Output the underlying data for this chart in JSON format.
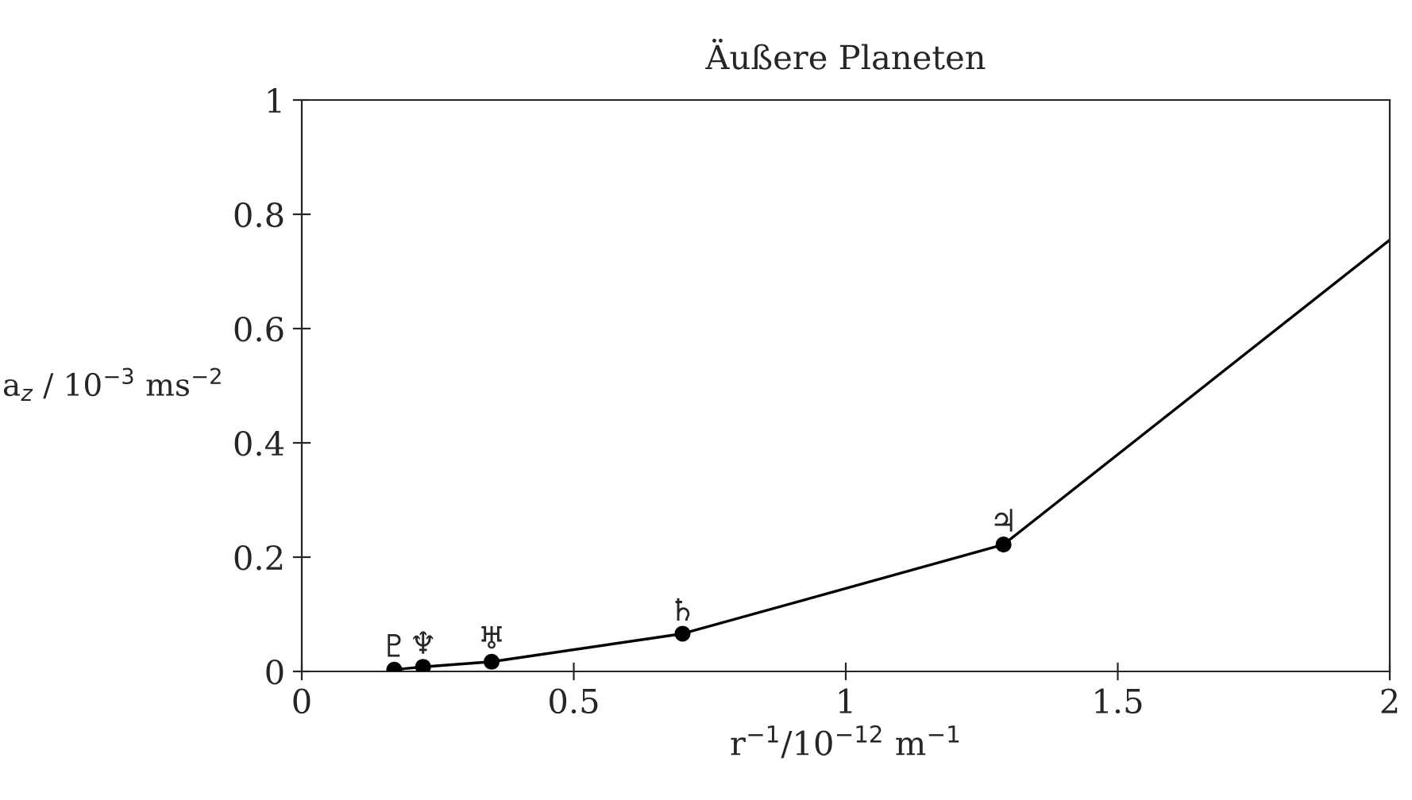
{
  "chart_data": {
    "type": "line",
    "title": "Äußere Planeten",
    "xlabel": "r$^{−1}$/10$^{−12}$ m$^{−1}$",
    "ylabel": "a$_{z}$ / 10$^{−3}$ ms$^{−2}$",
    "series": [
      {
        "color": "#000000",
        "marker": "none",
        "x": [
          0.17,
          0.223,
          0.349,
          0.7,
          1.29,
          2.0
        ],
        "values": [
          0.003,
          0.008,
          0.017,
          0.066,
          0.222,
          0.755
        ]
      },
      {
        "type": "scatter",
        "color": "#000000",
        "marker": "circle",
        "x": [
          0.17,
          0.223,
          0.349,
          0.7,
          1.29
        ],
        "values": [
          0.003,
          0.008,
          0.017,
          0.066,
          0.222
        ]
      }
    ],
    "annotations": [
      {
        "text": "♇",
        "x": 0.17,
        "y": 0.003
      },
      {
        "text": "♆",
        "x": 0.223,
        "y": 0.008
      },
      {
        "text": "♅",
        "x": 0.349,
        "y": 0.017
      },
      {
        "text": "♄",
        "x": 0.7,
        "y": 0.066
      },
      {
        "text": "♃",
        "x": 1.29,
        "y": 0.222
      }
    ],
    "xlim": [
      0,
      2
    ],
    "ylim": [
      0,
      1
    ],
    "xticks": [
      0,
      0.5,
      1,
      1.5,
      2
    ],
    "yticks": [
      0,
      0.2,
      0.4,
      0.6,
      0.8,
      1
    ],
    "grid": false,
    "legend": false
  }
}
